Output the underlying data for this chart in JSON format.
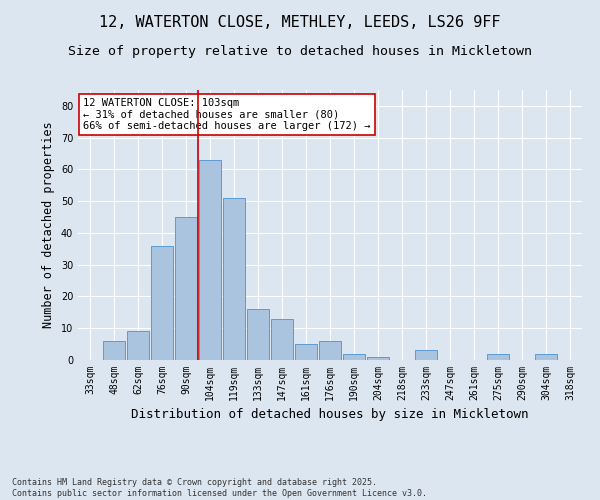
{
  "title_line1": "12, WATERTON CLOSE, METHLEY, LEEDS, LS26 9FF",
  "title_line2": "Size of property relative to detached houses in Mickletown",
  "xlabel": "Distribution of detached houses by size in Mickletown",
  "ylabel": "Number of detached properties",
  "categories": [
    "33sqm",
    "48sqm",
    "62sqm",
    "76sqm",
    "90sqm",
    "104sqm",
    "119sqm",
    "133sqm",
    "147sqm",
    "161sqm",
    "176sqm",
    "190sqm",
    "204sqm",
    "218sqm",
    "233sqm",
    "247sqm",
    "261sqm",
    "275sqm",
    "290sqm",
    "304sqm",
    "318sqm"
  ],
  "values": [
    0,
    6,
    9,
    36,
    45,
    63,
    51,
    16,
    13,
    5,
    6,
    2,
    1,
    0,
    3,
    0,
    0,
    2,
    0,
    2,
    0
  ],
  "bar_color": "#aac4e0",
  "bar_edge_color": "#5b9bd5",
  "background_color": "#dce6f1",
  "grid_color": "#ffffff",
  "vline_x_index": 5,
  "vline_color": "#cc0000",
  "annotation_text": "12 WATERTON CLOSE: 103sqm\n← 31% of detached houses are smaller (80)\n66% of semi-detached houses are larger (172) →",
  "annotation_box_color": "#ffffff",
  "annotation_box_edge": "#cc0000",
  "ylim": [
    0,
    85
  ],
  "yticks": [
    0,
    10,
    20,
    30,
    40,
    50,
    60,
    70,
    80
  ],
  "footnote": "Contains HM Land Registry data © Crown copyright and database right 2025.\nContains public sector information licensed under the Open Government Licence v3.0.",
  "title_fontsize": 11,
  "subtitle_fontsize": 9.5,
  "axis_label_fontsize": 8.5,
  "tick_fontsize": 7,
  "annotation_fontsize": 7.5
}
